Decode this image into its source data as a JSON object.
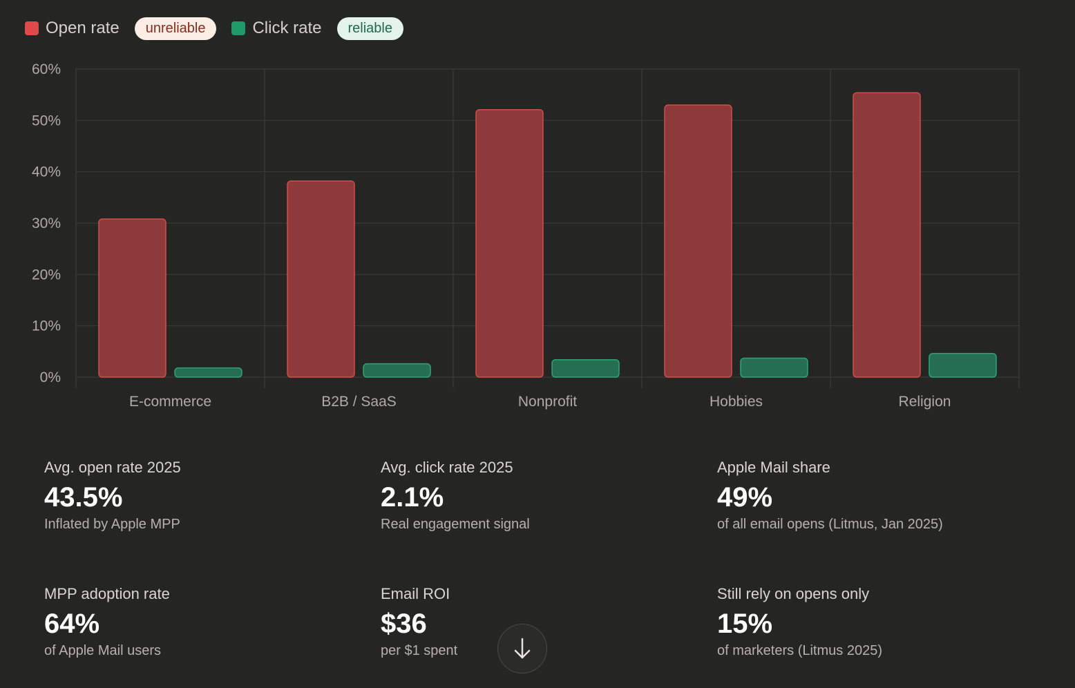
{
  "legend": {
    "open_label": "Open rate",
    "open_badge": "unreliable",
    "click_label": "Click rate",
    "click_badge": "reliable",
    "open_color": "#e04a4a",
    "click_color": "#1f9b6a"
  },
  "chart_data": {
    "type": "bar",
    "categories": [
      "E-commerce",
      "B2B / SaaS",
      "Nonprofit",
      "Hobbies",
      "Religion"
    ],
    "series": [
      {
        "name": "Open rate",
        "values": [
          30.8,
          38.2,
          52.1,
          53.0,
          55.4
        ],
        "color": "#8f3a3a",
        "stroke": "#d24c4c"
      },
      {
        "name": "Click rate",
        "values": [
          1.8,
          2.6,
          3.4,
          3.7,
          4.6
        ],
        "color": "#256e52",
        "stroke": "#2fa374"
      }
    ],
    "ylim": [
      0,
      60
    ],
    "yticks": [
      "0%",
      "10%",
      "20%",
      "30%",
      "40%",
      "50%",
      "60%"
    ],
    "grid": true
  },
  "stats": [
    {
      "label": "Avg. open rate 2025",
      "value": "43.5%",
      "note": "Inflated by Apple MPP"
    },
    {
      "label": "Avg. click rate 2025",
      "value": "2.1%",
      "note": "Real engagement signal"
    },
    {
      "label": "Apple Mail share",
      "value": "49%",
      "note": "of all email opens (Litmus, Jan 2025)"
    },
    {
      "label": "MPP adoption rate",
      "value": "64%",
      "note": "of Apple Mail users"
    },
    {
      "label": "Email ROI",
      "value": "$36",
      "note": "per $1 spent"
    },
    {
      "label": "Still rely on opens only",
      "value": "15%",
      "note": "of marketers (Litmus 2025)"
    }
  ],
  "scroll_button": {
    "icon": "arrow-down-icon"
  }
}
